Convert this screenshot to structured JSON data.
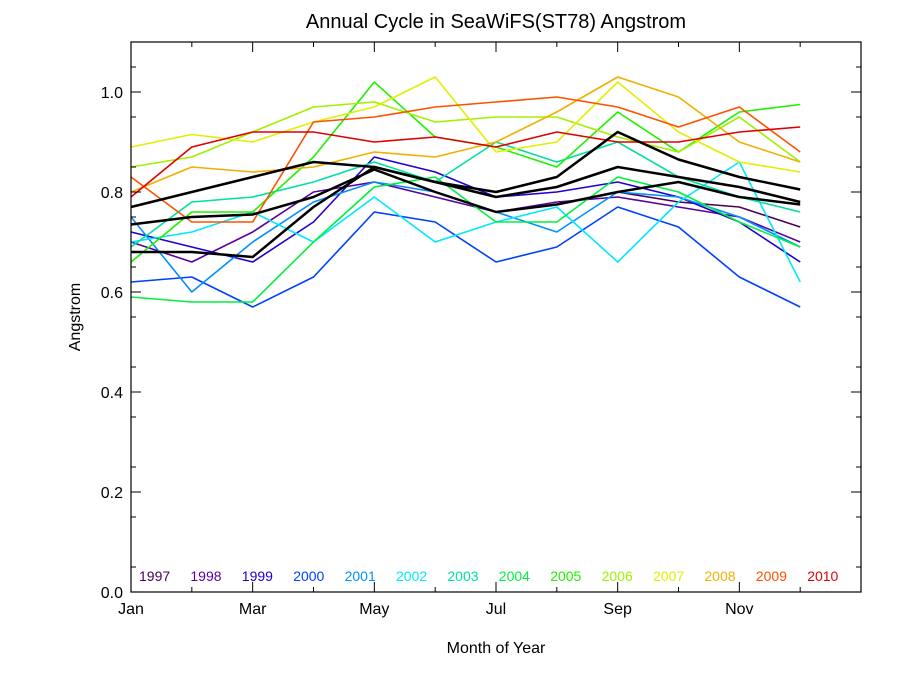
{
  "chart_data": {
    "type": "line",
    "title": "Annual Cycle in SeaWiFS(ST78) Angstrom",
    "xlabel": "Month of Year",
    "ylabel": "Angstrom",
    "x": [
      1,
      2,
      3,
      4,
      5,
      6,
      7,
      8,
      9,
      10,
      11,
      12
    ],
    "xlim": [
      1,
      13
    ],
    "ylim": [
      0.0,
      1.1
    ],
    "x_ticks": [
      {
        "value": 1,
        "label": "Jan"
      },
      {
        "value": 3,
        "label": "Mar"
      },
      {
        "value": 5,
        "label": "May"
      },
      {
        "value": 7,
        "label": "Jul"
      },
      {
        "value": 9,
        "label": "Sep"
      },
      {
        "value": 11,
        "label": "Nov"
      }
    ],
    "y_ticks": [
      {
        "value": 0.0,
        "label": "0.0"
      },
      {
        "value": 0.2,
        "label": "0.2"
      },
      {
        "value": 0.4,
        "label": "0.4"
      },
      {
        "value": 0.6,
        "label": "0.6"
      },
      {
        "value": 0.8,
        "label": "0.8"
      },
      {
        "value": 1.0,
        "label": "1.0"
      }
    ],
    "grid": false,
    "legend_position": "bottom",
    "series": [
      {
        "name": "1997",
        "color": "#4b0055",
        "values": [
          null,
          null,
          null,
          null,
          null,
          null,
          null,
          null,
          0.8,
          0.78,
          0.77,
          0.73
        ]
      },
      {
        "name": "1998",
        "color": "#5a00a0",
        "values": [
          0.7,
          0.66,
          0.72,
          0.8,
          0.82,
          0.79,
          0.76,
          0.78,
          0.79,
          0.77,
          0.75,
          0.7
        ]
      },
      {
        "name": "1999",
        "color": "#2000d0",
        "values": [
          0.72,
          0.69,
          0.66,
          0.74,
          0.87,
          0.84,
          0.79,
          0.8,
          0.82,
          0.79,
          0.74,
          0.66
        ]
      },
      {
        "name": "2000",
        "color": "#0040ff",
        "values": [
          0.62,
          0.63,
          0.57,
          0.63,
          0.76,
          0.74,
          0.66,
          0.69,
          0.77,
          0.73,
          0.63,
          0.57
        ]
      },
      {
        "name": "2001",
        "color": "#0090ff",
        "values": [
          0.75,
          0.6,
          0.7,
          0.78,
          0.82,
          0.8,
          0.76,
          0.72,
          0.8,
          0.79,
          0.75,
          0.69
        ]
      },
      {
        "name": "2002",
        "color": "#00e8ff",
        "values": [
          0.7,
          0.72,
          0.76,
          0.7,
          0.79,
          0.7,
          0.74,
          0.77,
          0.66,
          0.78,
          0.86,
          0.62
        ]
      },
      {
        "name": "2003",
        "color": "#00e0a0",
        "values": [
          0.69,
          0.78,
          0.79,
          0.82,
          0.86,
          0.82,
          0.9,
          0.86,
          0.9,
          0.83,
          0.79,
          0.76
        ]
      },
      {
        "name": "2004",
        "color": "#00f040",
        "values": [
          0.59,
          0.58,
          0.58,
          0.7,
          0.81,
          0.83,
          0.74,
          0.74,
          0.83,
          0.8,
          0.74,
          0.69
        ]
      },
      {
        "name": "2005",
        "color": "#20f000",
        "values": [
          0.66,
          0.76,
          0.76,
          0.87,
          1.02,
          0.91,
          0.89,
          0.85,
          0.96,
          0.88,
          0.96,
          0.975
        ]
      },
      {
        "name": "2006",
        "color": "#a0f000",
        "values": [
          0.85,
          0.87,
          0.92,
          0.97,
          0.98,
          0.94,
          0.95,
          0.95,
          0.91,
          0.88,
          0.95,
          0.86
        ]
      },
      {
        "name": "2007",
        "color": "#e0f000",
        "values": [
          0.89,
          0.915,
          0.9,
          0.94,
          0.97,
          1.03,
          0.88,
          0.9,
          1.02,
          0.92,
          0.86,
          0.84
        ]
      },
      {
        "name": "2008",
        "color": "#f0b000",
        "values": [
          0.8,
          0.85,
          0.84,
          0.85,
          0.88,
          0.87,
          0.9,
          0.96,
          1.03,
          0.99,
          0.9,
          0.86
        ]
      },
      {
        "name": "2009",
        "color": "#ff5000",
        "values": [
          0.83,
          0.74,
          0.74,
          0.94,
          0.95,
          0.97,
          0.98,
          0.99,
          0.97,
          0.93,
          0.97,
          0.88
        ]
      },
      {
        "name": "2010",
        "color": "#e00000",
        "values": [
          0.79,
          0.89,
          0.92,
          0.92,
          0.9,
          0.91,
          0.89,
          0.92,
          0.9,
          0.9,
          0.92,
          0.93
        ]
      },
      {
        "name": "",
        "color": "#000000",
        "width": 2.5,
        "values": [
          0.735,
          0.75,
          0.755,
          0.79,
          0.845,
          0.8,
          0.76,
          0.775,
          0.8,
          0.82,
          0.79,
          0.775
        ]
      },
      {
        "name": "",
        "color": "#000000",
        "width": 2.5,
        "values": [
          0.77,
          0.8,
          0.83,
          0.86,
          0.85,
          0.82,
          0.8,
          0.83,
          0.92,
          0.865,
          0.83,
          0.805
        ]
      },
      {
        "name": "",
        "color": "#000000",
        "width": 2.5,
        "values": [
          0.68,
          0.68,
          0.67,
          0.77,
          0.85,
          0.82,
          0.79,
          0.81,
          0.85,
          0.83,
          0.81,
          0.78
        ]
      }
    ]
  }
}
